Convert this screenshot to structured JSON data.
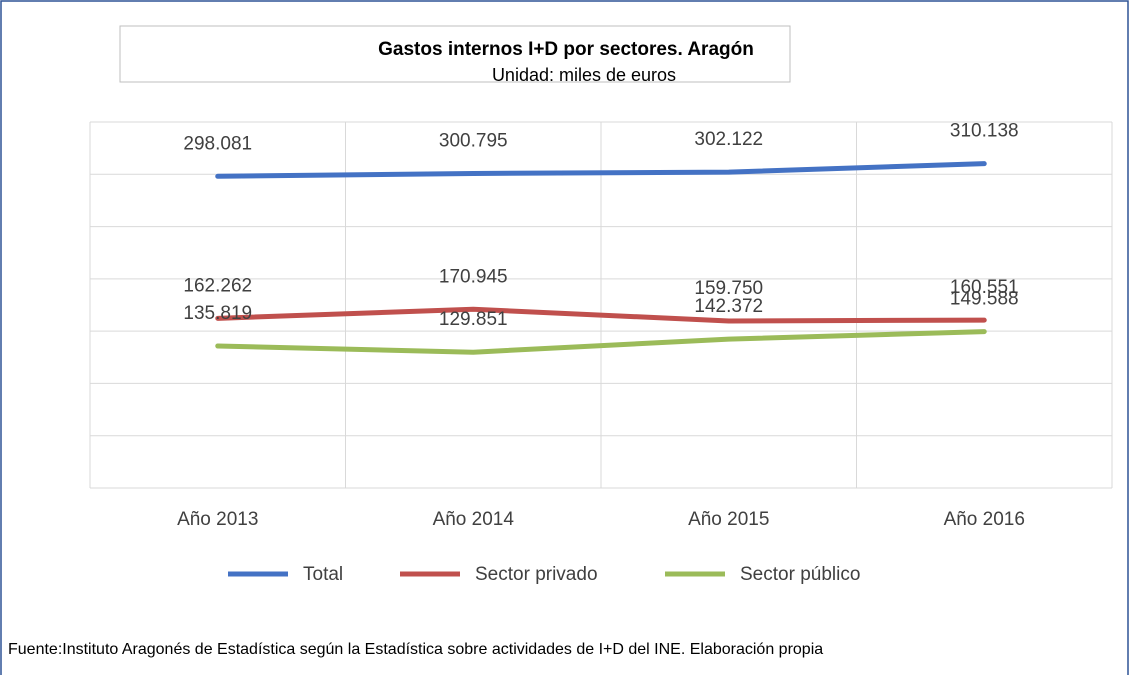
{
  "chart_data": {
    "type": "line",
    "title": "Gastos internos I+D por sectores. Aragón",
    "subtitle": "Unidad: miles de euros",
    "categories": [
      "Año 2013",
      "Año 2014",
      "Año 2015",
      "Año 2016"
    ],
    "series": [
      {
        "name": "Total",
        "color": "#4472c4",
        "values": [
          298081,
          300795,
          302122,
          310138
        ],
        "value_labels": [
          "298.081",
          "300.795",
          "302.122",
          "310.138"
        ]
      },
      {
        "name": "Sector privado",
        "color": "#c0504d",
        "values": [
          162262,
          170945,
          159750,
          160551
        ],
        "value_labels": [
          "162.262",
          "170.945",
          "159.750",
          "160.551"
        ]
      },
      {
        "name": "Sector público",
        "color": "#9bbb59",
        "values": [
          135819,
          129851,
          142372,
          149588
        ],
        "value_labels": [
          "135.819",
          "129.851",
          "142.372",
          "149.588"
        ]
      }
    ],
    "ylim": [
      0,
      350000
    ],
    "yticks": [
      0,
      50000,
      100000,
      150000,
      200000,
      250000,
      300000,
      350000
    ],
    "grid": true,
    "legend": "bottom",
    "source": "Fuente:Instituto Aragonés de Estadística según la Estadística sobre actividades de I+D del INE. Elaboración propia"
  }
}
